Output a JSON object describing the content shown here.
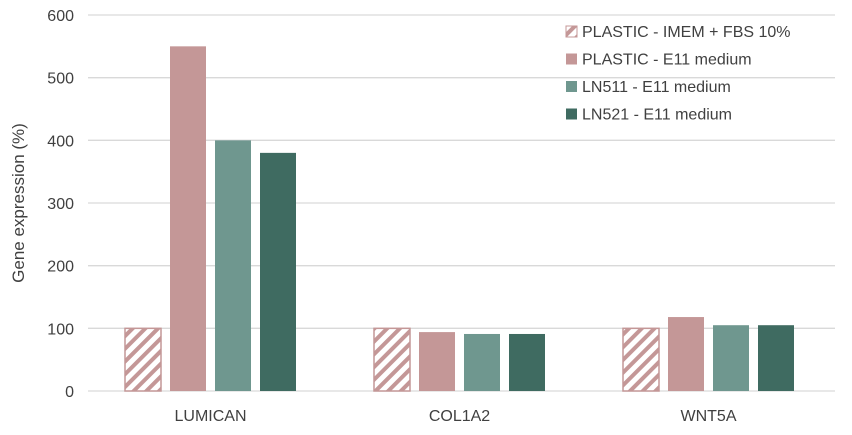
{
  "chart_data": {
    "type": "bar",
    "title": "",
    "xlabel": "",
    "ylabel": "Gene expression (%)",
    "ylim": [
      0,
      600
    ],
    "yticks": [
      0,
      100,
      200,
      300,
      400,
      500,
      600
    ],
    "grid": true,
    "legend_position": "top-right",
    "categories": [
      "LUMICAN",
      "COL1A2",
      "WNT5A"
    ],
    "series": [
      {
        "name": "PLASTIC - IMEM + FBS 10%",
        "values": [
          100,
          100,
          100
        ],
        "color": "#c49797",
        "pattern": "hatched"
      },
      {
        "name": "PLASTIC - E11 medium",
        "values": [
          550,
          94,
          118
        ],
        "color": "#c49797",
        "pattern": "solid"
      },
      {
        "name": "LN511 - E11 medium",
        "values": [
          400,
          91,
          105
        ],
        "color": "#6f978f",
        "pattern": "solid"
      },
      {
        "name": "LN521 - E11 medium",
        "values": [
          380,
          91,
          105
        ],
        "color": "#3f6b61",
        "pattern": "solid"
      }
    ]
  }
}
